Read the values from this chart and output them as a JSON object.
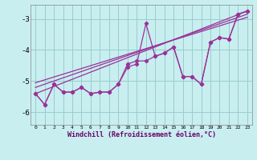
{
  "xlabel": "Windchill (Refroidissement éolien,°C)",
  "background_color": "#c8eef0",
  "grid_color": "#99cccc",
  "line_color": "#993399",
  "xlim": [
    -0.5,
    23.5
  ],
  "ylim": [
    -6.4,
    -2.55
  ],
  "yticks": [
    -6,
    -5,
    -4,
    -3
  ],
  "xticks": [
    0,
    1,
    2,
    3,
    4,
    5,
    6,
    7,
    8,
    9,
    10,
    11,
    12,
    13,
    14,
    15,
    16,
    17,
    18,
    19,
    20,
    21,
    22,
    23
  ],
  "series1_x": [
    0,
    1,
    2,
    3,
    4,
    5,
    6,
    7,
    8,
    9,
    10,
    11,
    12,
    13,
    14,
    15,
    16,
    17,
    18,
    19,
    20,
    21,
    22,
    23
  ],
  "series1_y": [
    -5.4,
    -5.75,
    -5.1,
    -5.35,
    -5.35,
    -5.2,
    -5.4,
    -5.35,
    -5.35,
    -5.1,
    -4.55,
    -4.45,
    -3.15,
    -4.2,
    -4.1,
    -3.9,
    -4.85,
    -4.85,
    -5.1,
    -3.75,
    -3.6,
    -3.65,
    -2.85,
    -2.75
  ],
  "series2_x": [
    0,
    1,
    2,
    3,
    4,
    5,
    6,
    7,
    8,
    9,
    10,
    11,
    12,
    13,
    14,
    15,
    16,
    17,
    18,
    19,
    20,
    21,
    22,
    23
  ],
  "series2_y": [
    -5.4,
    -5.75,
    -5.1,
    -5.35,
    -5.35,
    -5.2,
    -5.4,
    -5.35,
    -5.35,
    -5.1,
    -4.45,
    -4.35,
    -4.35,
    -4.2,
    -4.1,
    -3.9,
    -4.85,
    -4.85,
    -5.1,
    -3.75,
    -3.6,
    -3.65,
    -2.85,
    -2.75
  ],
  "trend1_x": [
    0,
    23
  ],
  "trend1_y": [
    -5.4,
    -2.75
  ],
  "trend2_x": [
    0,
    23
  ],
  "trend2_y": [
    -5.2,
    -2.85
  ],
  "trend3_x": [
    0,
    23
  ],
  "trend3_y": [
    -5.05,
    -2.95
  ]
}
